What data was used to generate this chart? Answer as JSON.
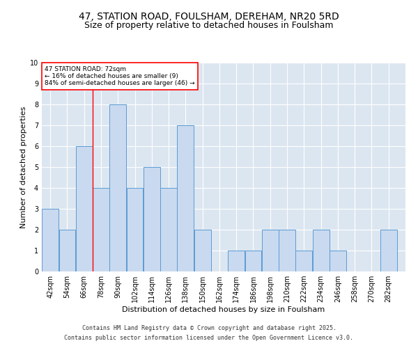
{
  "title": "47, STATION ROAD, FOULSHAM, DEREHAM, NR20 5RD",
  "subtitle": "Size of property relative to detached houses in Foulsham",
  "xlabel": "Distribution of detached houses by size in Foulsham",
  "ylabel": "Number of detached properties",
  "footnote1": "Contains HM Land Registry data © Crown copyright and database right 2025.",
  "footnote2": "Contains public sector information licensed under the Open Government Licence v3.0.",
  "annotation_line1": "47 STATION ROAD: 72sqm",
  "annotation_line2": "← 16% of detached houses are smaller (9)",
  "annotation_line3": "84% of semi-detached houses are larger (46) →",
  "bins": [
    42,
    54,
    66,
    78,
    90,
    102,
    114,
    126,
    138,
    150,
    162,
    174,
    186,
    198,
    210,
    222,
    234,
    246,
    258,
    270,
    282
  ],
  "counts": [
    3,
    2,
    6,
    4,
    8,
    4,
    5,
    4,
    7,
    2,
    0,
    1,
    1,
    2,
    2,
    1,
    2,
    1,
    0,
    0,
    2
  ],
  "bar_color": "#c9d9ef",
  "bar_edge_color": "#5b9bd5",
  "red_line_x": 72,
  "bin_width": 12,
  "ylim": [
    0,
    10
  ],
  "yticks": [
    0,
    1,
    2,
    3,
    4,
    5,
    6,
    7,
    8,
    9,
    10
  ],
  "bg_color": "#dce6f1",
  "plot_bg_color": "#dce6f1",
  "grid_color": "#ffffff",
  "title_fontsize": 10,
  "subtitle_fontsize": 9,
  "axis_label_fontsize": 8,
  "tick_fontsize": 7,
  "footnote_fontsize": 6
}
